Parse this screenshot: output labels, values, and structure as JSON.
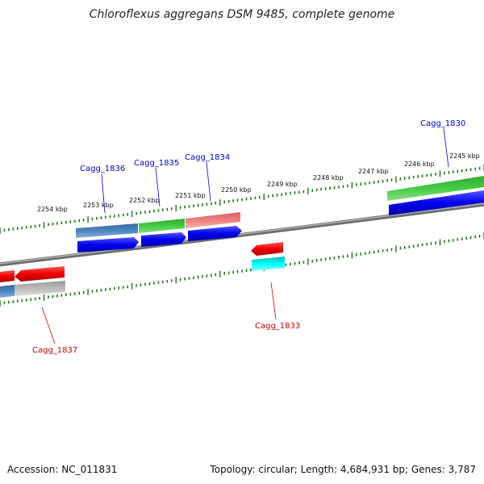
{
  "title": "Chloroflexus aggregans DSM 9485, complete genome",
  "footer": {
    "accession": "Accession: NC_011831",
    "summary": "Topology: circular; Length: 4,684,931 bp; Genes: 3,787"
  },
  "ticks": [
    {
      "label": "2254 kbp"
    },
    {
      "label": "2253 kbp"
    },
    {
      "label": "2252 kbp"
    },
    {
      "label": "2251 kbp"
    },
    {
      "label": "2250 kbp"
    },
    {
      "label": "2249 kbp"
    },
    {
      "label": "2248 kbp"
    },
    {
      "label": "2247 kbp"
    },
    {
      "label": "2246 kbp"
    },
    {
      "label": "2245 kbp"
    }
  ],
  "genes": [
    {
      "name": "Cagg_1830",
      "color": "#0000cc"
    },
    {
      "name": "Cagg_1833",
      "color": "#cc0000"
    },
    {
      "name": "Cagg_1834",
      "color": "#0000cc"
    },
    {
      "name": "Cagg_1835",
      "color": "#0000cc"
    },
    {
      "name": "Cagg_1836",
      "color": "#0000cc"
    },
    {
      "name": "Cagg_1837",
      "color": "#cc0000"
    }
  ],
  "colors": {
    "forward_cds": "#0000ee",
    "reverse_cds": "#ee0000",
    "backbone": "#808080",
    "ticks": "#1a7a1a"
  }
}
